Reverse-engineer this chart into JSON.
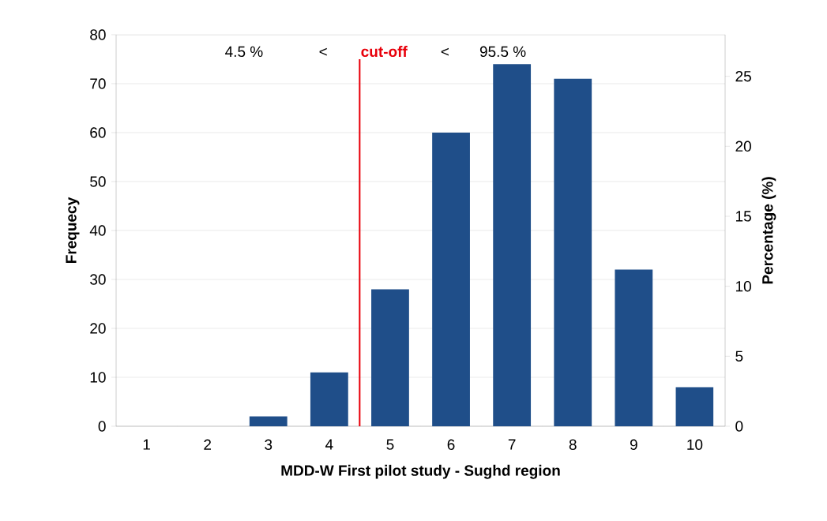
{
  "chart_data": {
    "type": "bar",
    "xlabel": "MDD-W First pilot study - Sughd region",
    "ylabel": "Frequecy",
    "y2label": "Percentage (%)",
    "x": [
      1,
      2,
      3,
      4,
      5,
      6,
      7,
      8,
      9,
      10
    ],
    "values": [
      0,
      0,
      2,
      11,
      28,
      60,
      74,
      71,
      32,
      8
    ],
    "color": "#1f4e89",
    "xlim": [
      0.5,
      10.5
    ],
    "xticks": [
      {
        "value": 0.5,
        "label": null
      },
      {
        "value": 1,
        "label": "1"
      },
      {
        "value": 1.5,
        "label": null
      },
      {
        "value": 2,
        "label": "2"
      },
      {
        "value": 2.5,
        "label": null
      },
      {
        "value": 3,
        "label": "3"
      },
      {
        "value": 3.5,
        "label": null
      },
      {
        "value": 4,
        "label": "4"
      },
      {
        "value": 4.5,
        "label": null
      },
      {
        "value": 5,
        "label": "5"
      },
      {
        "value": 5.5,
        "label": null
      },
      {
        "value": 6,
        "label": "6"
      },
      {
        "value": 6.5,
        "label": null
      },
      {
        "value": 7,
        "label": "7"
      },
      {
        "value": 7.5,
        "label": null
      },
      {
        "value": 8,
        "label": "8"
      },
      {
        "value": 8.5,
        "label": null
      },
      {
        "value": 9,
        "label": "9"
      },
      {
        "value": 9.5,
        "label": null
      },
      {
        "value": 10,
        "label": "10"
      },
      {
        "value": 10.5,
        "label": null
      }
    ],
    "ylim": [
      0,
      80
    ],
    "yticks": [
      0,
      10,
      20,
      30,
      40,
      50,
      60,
      70,
      80
    ],
    "y2lim": [
      0,
      27.97
    ],
    "y2ticks": [
      0,
      5,
      10,
      15,
      20,
      25
    ],
    "ref_lines": [
      {
        "axis": "x",
        "value": 4.5,
        "label": "cut-off",
        "color": "#e8000b"
      }
    ],
    "annotations": [
      "4.5 %",
      "<",
      "<",
      "95.5 %"
    ],
    "grid": "y"
  }
}
